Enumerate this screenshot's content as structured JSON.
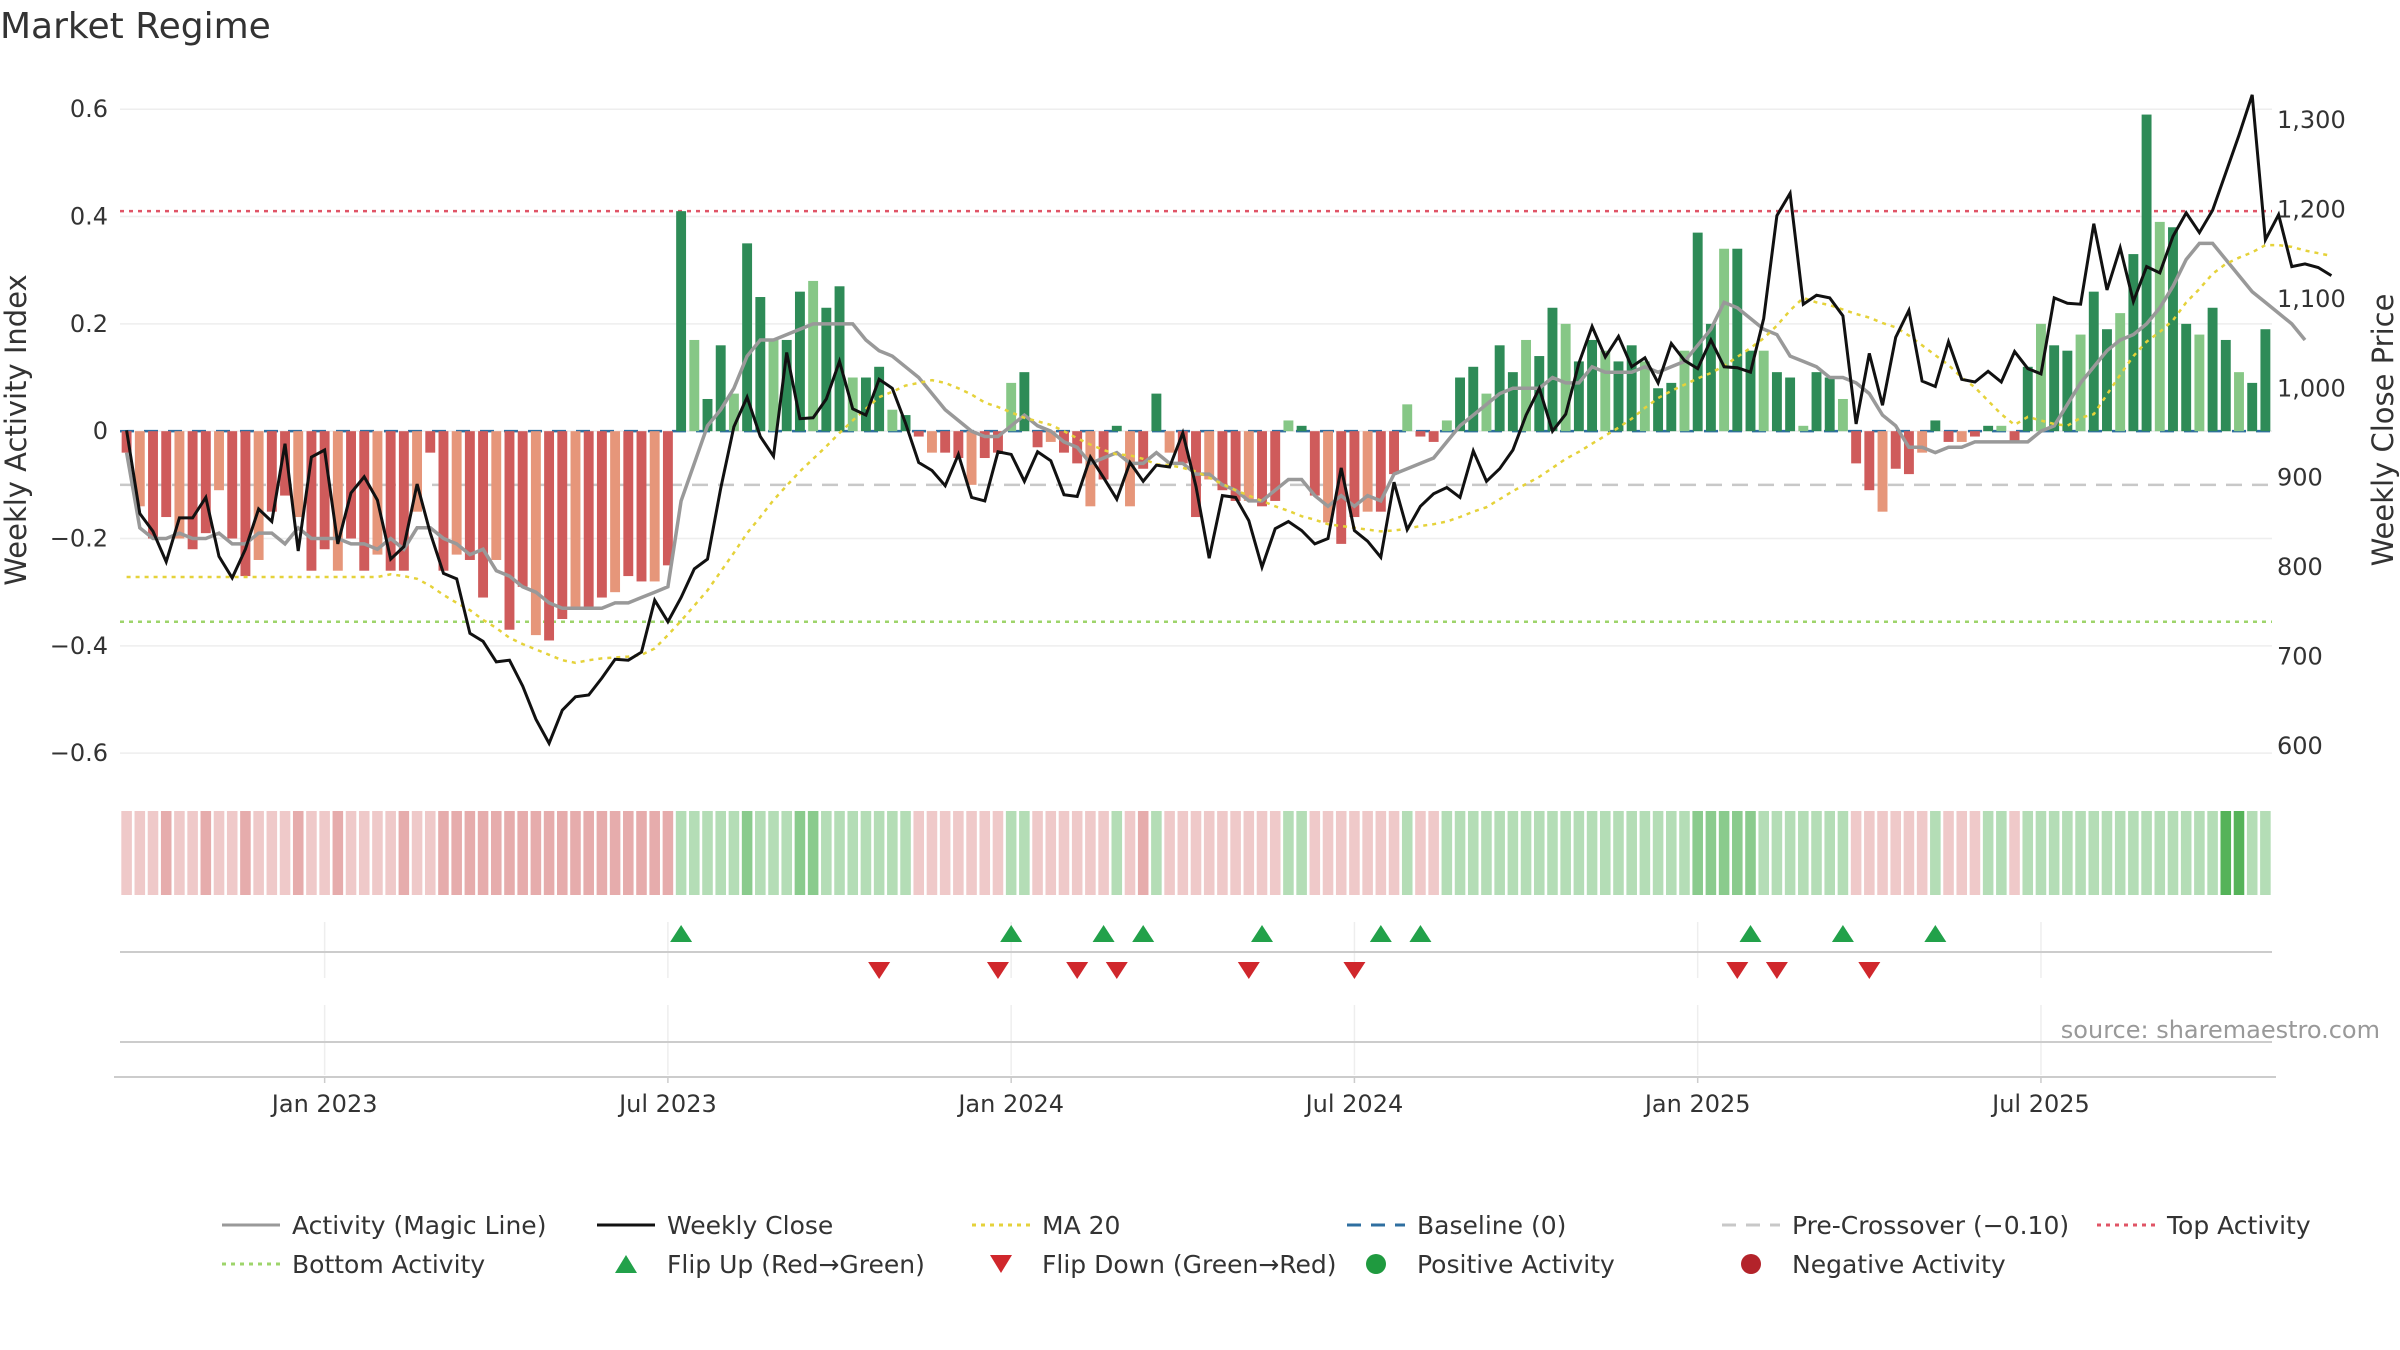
{
  "chart_data": {
    "type": "bar",
    "title": "Market Regime",
    "source": "source: sharemaestro.com",
    "ylabel": "Weekly Activity Index",
    "y2label": "Weekly Close Price",
    "ylim": [
      -0.65,
      0.66
    ],
    "y2lim": [
      562,
      1348
    ],
    "y_ticks": [
      {
        "v": 0.6,
        "label": "0.6"
      },
      {
        "v": 0.4,
        "label": "0.4"
      },
      {
        "v": 0.2,
        "label": "0.2"
      },
      {
        "v": 0,
        "label": "0"
      },
      {
        "v": -0.2,
        "label": "−0.2"
      },
      {
        "v": -0.4,
        "label": "−0.4"
      },
      {
        "v": -0.6,
        "label": "−0.6"
      }
    ],
    "y2_ticks": [
      {
        "v": 1300,
        "label": "1,300"
      },
      {
        "v": 1200,
        "label": "1,200"
      },
      {
        "v": 1100,
        "label": "1,100"
      },
      {
        "v": 1000,
        "label": "1,000"
      },
      {
        "v": 900,
        "label": "900"
      },
      {
        "v": 800,
        "label": "800"
      },
      {
        "v": 700,
        "label": "700"
      },
      {
        "v": 600,
        "label": "600"
      }
    ],
    "x_ticks": [
      {
        "week": 15,
        "label": "Jan 2023"
      },
      {
        "week": 41,
        "label": "Jul 2023"
      },
      {
        "week": 67,
        "label": "Jan 2024"
      },
      {
        "week": 93,
        "label": "Jul 2024"
      },
      {
        "week": 119,
        "label": "Jan 2025"
      },
      {
        "week": 145,
        "label": "Jul 2025"
      }
    ],
    "reference_lines": {
      "top": 0.41,
      "bottom": -0.355,
      "pre_crossover": -0.1,
      "baseline": 0
    },
    "activity": [
      -0.04,
      -0.14,
      -0.2,
      -0.16,
      -0.2,
      -0.22,
      -0.19,
      -0.11,
      -0.2,
      -0.27,
      -0.24,
      -0.15,
      -0.12,
      -0.16,
      -0.26,
      -0.22,
      -0.26,
      -0.2,
      -0.26,
      -0.23,
      -0.26,
      -0.26,
      -0.15,
      -0.04,
      -0.26,
      -0.23,
      -0.24,
      -0.31,
      -0.24,
      -0.37,
      -0.29,
      -0.38,
      -0.39,
      -0.35,
      -0.33,
      -0.33,
      -0.31,
      -0.3,
      -0.27,
      -0.28,
      -0.28,
      -0.25,
      0.41,
      0.17,
      0.06,
      0.16,
      0.07,
      0.35,
      0.25,
      0.17,
      0.17,
      0.26,
      0.28,
      0.23,
      0.27,
      0.1,
      0.1,
      0.12,
      0.04,
      0.03,
      -0.01,
      -0.04,
      -0.04,
      -0.05,
      -0.1,
      -0.05,
      -0.04,
      0.09,
      0.11,
      -0.03,
      -0.02,
      -0.04,
      -0.06,
      -0.14,
      -0.09,
      0.01,
      -0.14,
      -0.07,
      0.07,
      -0.04,
      -0.06,
      -0.16,
      -0.09,
      -0.11,
      -0.13,
      -0.13,
      -0.14,
      -0.13,
      0.02,
      0.01,
      -0.12,
      -0.17,
      -0.21,
      -0.16,
      -0.15,
      -0.15,
      -0.08,
      0.05,
      -0.01,
      -0.02,
      0.02,
      0.1,
      0.12,
      0.07,
      0.16,
      0.11,
      0.17,
      0.14,
      0.23,
      0.2,
      0.13,
      0.17,
      0.15,
      0.13,
      0.16,
      0.13,
      0.08,
      0.09,
      0.15,
      0.37,
      0.2,
      0.34,
      0.34,
      0.15,
      0.15,
      0.11,
      0.1,
      0.01,
      0.11,
      0.1,
      0.06,
      -0.06,
      -0.11,
      -0.15,
      -0.07,
      -0.08,
      -0.04,
      0.02,
      -0.02,
      -0.02,
      -0.01,
      0.01,
      0.01,
      -0.02,
      0.12,
      0.2,
      0.16,
      0.15,
      0.18,
      0.26,
      0.19,
      0.22,
      0.33,
      0.59,
      0.39,
      0.38,
      0.2,
      0.18,
      0.23,
      0.17,
      0.11,
      0.09,
      0.19
    ],
    "regime_shade": [
      1,
      1,
      1,
      2,
      1,
      1,
      2,
      1,
      1,
      2,
      1,
      1,
      1,
      2,
      1,
      1,
      2,
      1,
      1,
      1,
      1,
      2,
      1,
      1,
      2,
      2,
      2,
      2,
      2,
      2,
      2,
      2,
      2,
      2,
      2,
      2,
      2,
      2,
      2,
      2,
      2,
      2,
      1,
      1,
      1,
      1,
      1,
      2,
      1,
      1,
      1,
      2,
      2,
      1,
      1,
      1,
      1,
      1,
      1,
      1,
      1,
      1,
      1,
      1,
      1,
      1,
      1,
      1,
      1,
      1,
      1,
      1,
      1,
      1,
      1,
      1,
      1,
      2,
      1,
      1,
      1,
      1,
      1,
      1,
      1,
      1,
      1,
      1,
      1,
      1,
      1,
      1,
      1,
      1,
      1,
      1,
      1,
      1,
      1,
      1,
      1,
      1,
      1,
      1,
      1,
      1,
      1,
      1,
      1,
      1,
      1,
      1,
      1,
      1,
      1,
      1,
      1,
      1,
      1,
      2,
      2,
      2,
      2,
      2,
      1,
      1,
      1,
      1,
      1,
      1,
      1,
      1,
      1,
      1,
      1,
      1,
      1,
      1,
      1,
      1,
      1,
      1,
      1,
      1,
      1,
      1,
      1,
      1,
      1,
      1,
      1,
      1,
      1,
      1,
      1,
      1,
      1,
      1,
      1,
      3,
      3,
      1,
      1,
      1,
      1,
      1,
      1,
      1,
      1,
      1
    ],
    "weekly_close": [
      953,
      860,
      840,
      806,
      855,
      855,
      878,
      812,
      788,
      820,
      865,
      851,
      938,
      818,
      923,
      931,
      826,
      883,
      901,
      875,
      809,
      823,
      893,
      838,
      793,
      787,
      726,
      717,
      694,
      696,
      667,
      630,
      603,
      640,
      655,
      657,
      676,
      697,
      696,
      705,
      763,
      739,
      766,
      798,
      809,
      888,
      957,
      990,
      946,
      924,
      1040,
      966,
      967,
      988,
      1030,
      977,
      970,
      1010,
      1000,
      961,
      917,
      908,
      891,
      926,
      878,
      874,
      929,
      926,
      896,
      929,
      919,
      881,
      879,
      923,
      900,
      876,
      917,
      896,
      914,
      912,
      950,
      890,
      810,
      880,
      878,
      852,
      800,
      843,
      851,
      841,
      826,
      832,
      911,
      841,
      829,
      811,
      895,
      842,
      868,
      882,
      889,
      878,
      930,
      896,
      910,
      931,
      970,
      1000,
      952,
      971,
      1028,
      1069,
      1035,
      1058,
      1024,
      1034,
      1006,
      1050,
      1031,
      1022,
      1054,
      1024,
      1023,
      1018,
      1078,
      1193,
      1218,
      1094,
      1104,
      1101,
      1081,
      960,
      1039,
      981,
      1057,
      1087,
      1008,
      1002,
      1052,
      1010,
      1007,
      1019,
      1007,
      1041,
      1022,
      1016,
      1101,
      1095,
      1094,
      1184,
      1110,
      1157,
      1097,
      1136,
      1129,
      1170,
      1196,
      1174,
      1199,
      1241,
      1283,
      1328,
      1166,
      1194,
      1136,
      1139,
      1135,
      1126
    ],
    "activity_ma": [
      -0.04,
      -0.18,
      -0.2,
      -0.2,
      -0.19,
      -0.2,
      -0.2,
      -0.19,
      -0.21,
      -0.21,
      -0.19,
      -0.19,
      -0.21,
      -0.18,
      -0.2,
      -0.2,
      -0.2,
      -0.21,
      -0.21,
      -0.22,
      -0.2,
      -0.22,
      -0.18,
      -0.18,
      -0.2,
      -0.21,
      -0.23,
      -0.22,
      -0.26,
      -0.27,
      -0.29,
      -0.3,
      -0.32,
      -0.33,
      -0.33,
      -0.33,
      -0.33,
      -0.32,
      -0.32,
      -0.31,
      -0.3,
      -0.29,
      -0.13,
      -0.06,
      0.01,
      0.04,
      0.08,
      0.14,
      0.17,
      0.17,
      0.18,
      0.19,
      0.2,
      0.2,
      0.2,
      0.2,
      0.17,
      0.15,
      0.14,
      0.12,
      0.1,
      0.07,
      0.04,
      0.02,
      0.0,
      -0.01,
      -0.01,
      0.01,
      0.03,
      0.01,
      0.0,
      -0.02,
      -0.03,
      -0.06,
      -0.05,
      -0.04,
      -0.06,
      -0.06,
      -0.04,
      -0.06,
      -0.06,
      -0.08,
      -0.08,
      -0.1,
      -0.11,
      -0.13,
      -0.13,
      -0.11,
      -0.09,
      -0.09,
      -0.12,
      -0.14,
      -0.12,
      -0.14,
      -0.12,
      -0.13,
      -0.08,
      -0.07,
      -0.06,
      -0.05,
      -0.02,
      0.01,
      0.03,
      0.05,
      0.07,
      0.08,
      0.08,
      0.08,
      0.1,
      0.09,
      0.09,
      0.12,
      0.11,
      0.11,
      0.11,
      0.12,
      0.11,
      0.12,
      0.13,
      0.16,
      0.19,
      0.24,
      0.23,
      0.21,
      0.19,
      0.18,
      0.14,
      0.13,
      0.12,
      0.1,
      0.1,
      0.09,
      0.07,
      0.03,
      0.01,
      -0.03,
      -0.03,
      -0.04,
      -0.03,
      -0.03,
      -0.02,
      -0.02,
      -0.02,
      -0.02,
      -0.02,
      0.0,
      0.01,
      0.05,
      0.09,
      0.12,
      0.15,
      0.17,
      0.18,
      0.2,
      0.23,
      0.27,
      0.32,
      0.35,
      0.35,
      0.32,
      0.29,
      0.26,
      0.24,
      0.22,
      0.2,
      0.17
    ],
    "close_ma20": [
      789,
      789,
      789,
      789,
      789,
      789,
      789,
      789,
      789,
      789,
      789,
      789,
      789,
      789,
      789,
      789,
      789,
      789,
      789,
      789,
      792,
      790,
      787,
      779,
      769,
      760,
      752,
      741,
      732,
      721,
      714,
      708,
      702,
      696,
      693,
      696,
      698,
      699,
      700,
      702,
      709,
      724,
      740,
      757,
      774,
      795,
      816,
      838,
      856,
      875,
      891,
      907,
      921,
      935,
      950,
      964,
      977,
      990,
      996,
      1003,
      1006,
      1009,
      1006,
      1000,
      993,
      984,
      979,
      973,
      967,
      963,
      959,
      952,
      944,
      937,
      931,
      926,
      925,
      921,
      915,
      914,
      911,
      907,
      900,
      893,
      886,
      880,
      874,
      868,
      863,
      857,
      853,
      848,
      846,
      844,
      842,
      840,
      841,
      843,
      846,
      848,
      851,
      856,
      862,
      867,
      876,
      885,
      893,
      901,
      911,
      921,
      929,
      938,
      947,
      956,
      966,
      978,
      989,
      997,
      1004,
      1011,
      1017,
      1025,
      1035,
      1045,
      1056,
      1070,
      1087,
      1101,
      1096,
      1093,
      1088,
      1083,
      1079,
      1073,
      1068,
      1059,
      1048,
      1037,
      1026,
      1012,
      1001,
      986,
      971,
      959,
      968,
      964,
      960,
      958,
      967,
      971,
      993,
      1015,
      1036,
      1052,
      1063,
      1076,
      1096,
      1111,
      1128,
      1139,
      1146,
      1152,
      1160,
      1160,
      1158,
      1154,
      1151,
      1148
    ],
    "flip_up": [
      42,
      67,
      74,
      77,
      86,
      95,
      98,
      123,
      130,
      137
    ],
    "flip_down": [
      57,
      66,
      72,
      75,
      85,
      93,
      122,
      125,
      132
    ],
    "legend": [
      {
        "label": "Activity (Magic Line)",
        "kind": "line",
        "color": "#999999",
        "dash": ""
      },
      {
        "label": "Weekly Close",
        "kind": "line",
        "color": "#111111",
        "dash": ""
      },
      {
        "label": "MA 20",
        "kind": "line",
        "color": "#e5d23a",
        "dash": "4,5"
      },
      {
        "label": "Baseline (0)",
        "kind": "line",
        "color": "#2f6fa0",
        "dash": "14,10"
      },
      {
        "label": "Pre-Crossover (−0.10)",
        "kind": "line",
        "color": "#c8c8c8",
        "dash": "14,10"
      },
      {
        "label": "Top Activity",
        "kind": "line",
        "color": "#e05466",
        "dash": "4,5"
      },
      {
        "label": "Bottom Activity",
        "kind": "line",
        "color": "#9ed46b",
        "dash": "4,5"
      },
      {
        "label": "Flip Up (Red→Green)",
        "kind": "tri-up",
        "color": "#22a14a",
        "dash": ""
      },
      {
        "label": "Flip Down (Green→Red)",
        "kind": "tri-down",
        "color": "#d0272c",
        "dash": ""
      },
      {
        "label": "Positive Activity",
        "kind": "dot",
        "color": "#1f9a3f",
        "dash": ""
      },
      {
        "label": "Negative Activity",
        "kind": "dot",
        "color": "#b3232a",
        "dash": ""
      }
    ],
    "colors": {
      "pos_strong": "#2e8b57",
      "pos_weak": "#86c786",
      "neg_strong": "#cf5b5b",
      "neg_weak": "#e6967a",
      "regime_pos": "#4caf50",
      "regime_neg": "#d97f7f",
      "top_line": "#e05466",
      "bottom_line": "#9ed46b",
      "baseline": "#2f6fa0",
      "pre_crossover": "#c8c8c8",
      "close": "#111111",
      "ma20": "#e5d23a",
      "magic": "#999999"
    }
  }
}
